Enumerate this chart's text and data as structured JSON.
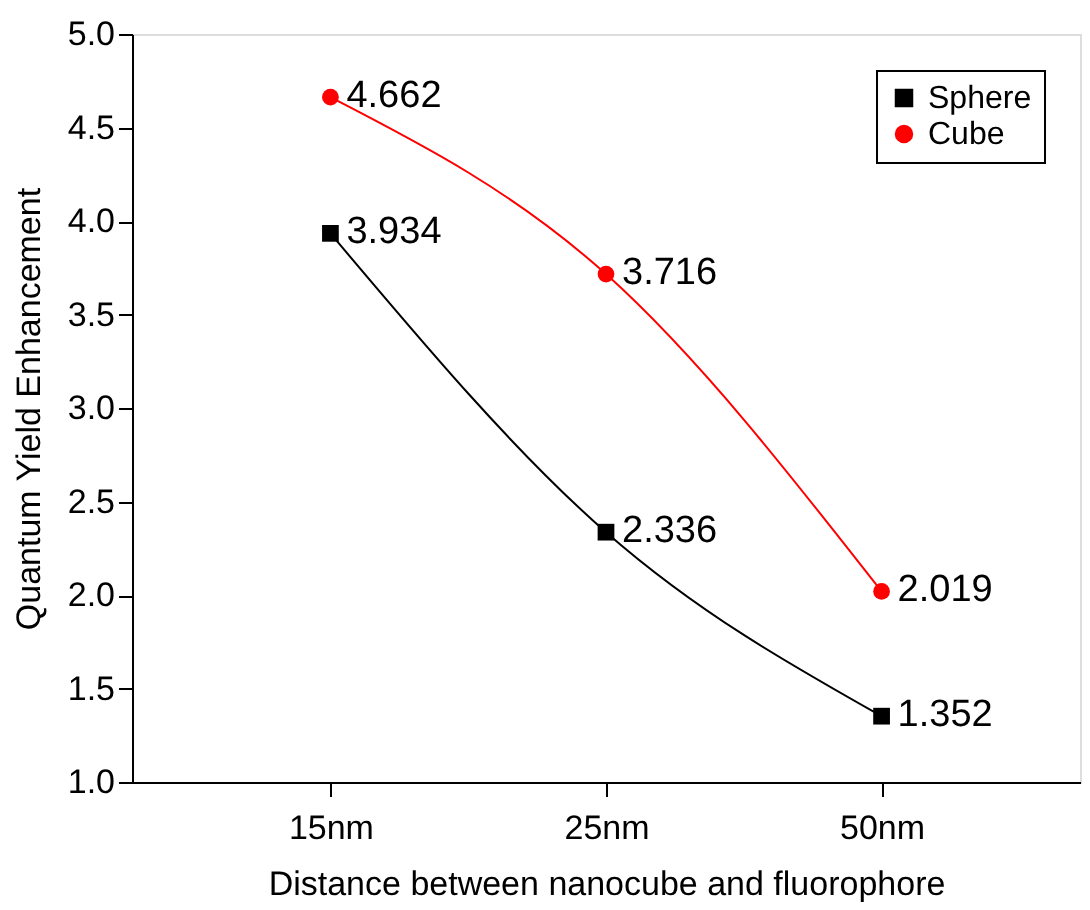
{
  "chart_data": {
    "type": "line",
    "xlabel": "Distance between nanocube and fluorophore",
    "ylabel": "Quantum Yield Enhancement",
    "categories": [
      "15nm",
      "25nm",
      "50nm"
    ],
    "series": [
      {
        "name": "Sphere",
        "color": "#000000",
        "marker": "square",
        "values": [
          3.934,
          2.336,
          1.352
        ]
      },
      {
        "name": "Cube",
        "color": "#ff0000",
        "marker": "circle",
        "values": [
          4.662,
          3.716,
          2.019
        ]
      }
    ],
    "ylim": [
      1.0,
      5.0
    ],
    "yticks": [
      {
        "value": 1,
        "label": "1.0"
      },
      1.5,
      {
        "value": 2,
        "label": "2.0"
      },
      2.5,
      {
        "value": 3,
        "label": "3.0"
      },
      3.5,
      {
        "value": 4,
        "label": "4.0"
      },
      4.5,
      {
        "value": 5,
        "label": "5.0"
      }
    ],
    "data_labels": true,
    "grid": false,
    "legend": "top right",
    "line_style": "solid"
  }
}
